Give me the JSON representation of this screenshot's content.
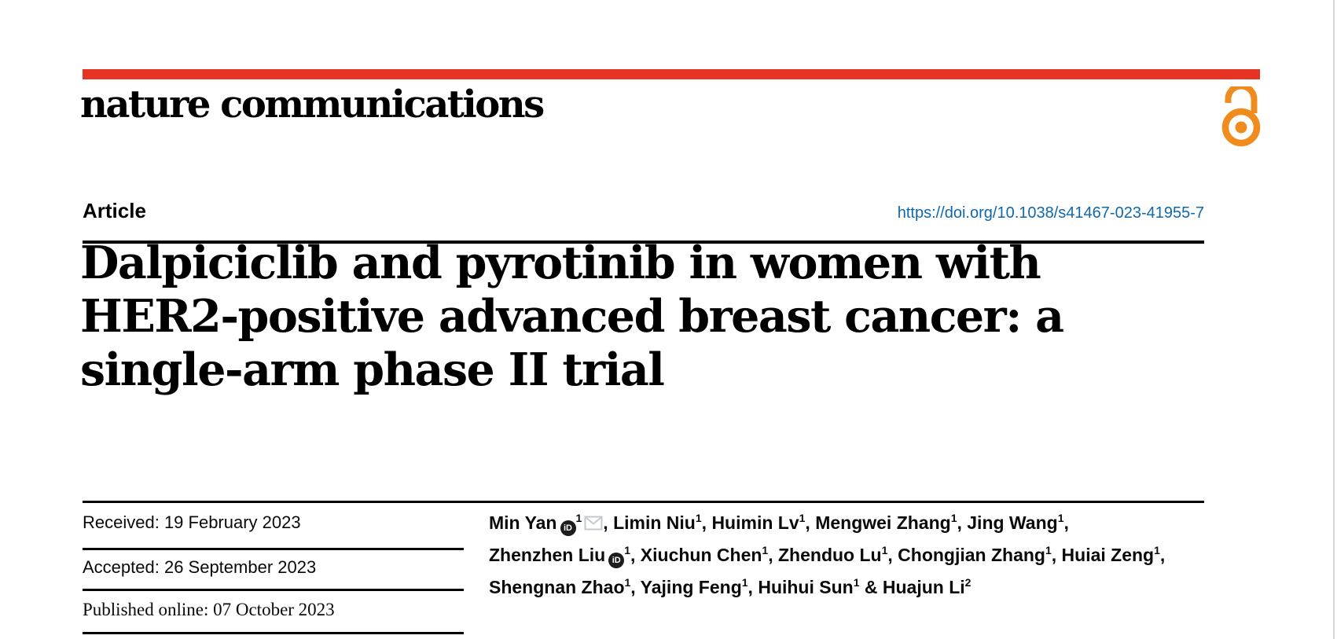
{
  "journal": {
    "name": "nature communications",
    "accent_color": "#e63323"
  },
  "open_access": {
    "icon": "open-padlock",
    "color": "#F08C1E"
  },
  "article": {
    "label": "Article",
    "doi": "https://doi.org/10.1038/s41467-023-41955-7",
    "doi_color": "#0f67ac"
  },
  "title": {
    "lines": [
      "Dalpiciclib and pyrotinib in women with",
      "HER2-positive advanced breast cancer: a",
      "single-arm phase II trial"
    ]
  },
  "dates": {
    "received": "Received: 19 February 2023",
    "accepted": "Accepted: 26 September 2023",
    "published_online": "Published online: 07 October 2023"
  },
  "icons": {
    "orcid_text": "iD",
    "email": "envelope",
    "email_color": "#c5cacf"
  },
  "authors": {
    "lines": [
      [
        {
          "name": "Min Yan",
          "orcid": true,
          "sup": "1",
          "email": true,
          "sep": ", "
        },
        {
          "name": "Limin Niu",
          "sup": "1",
          "sep": ", "
        },
        {
          "name": "Huimin Lv",
          "sup": "1",
          "sep": ", "
        },
        {
          "name": "Mengwei Zhang",
          "sup": "1",
          "sep": ", "
        },
        {
          "name": "Jing Wang",
          "sup": "1",
          "sep": ","
        }
      ],
      [
        {
          "name": "Zhenzhen Liu",
          "orcid": true,
          "sup": "1",
          "sep": ", "
        },
        {
          "name": "Xiuchun Chen",
          "sup": "1",
          "sep": ", "
        },
        {
          "name": "Zhenduo Lu",
          "sup": "1",
          "sep": ", "
        },
        {
          "name": "Chongjian Zhang",
          "sup": "1",
          "sep": ", "
        },
        {
          "name": "Huiai Zeng",
          "sup": "1",
          "sep": ","
        }
      ],
      [
        {
          "name": "Shengnan Zhao",
          "sup": "1",
          "sep": ", "
        },
        {
          "name": "Yajing Feng",
          "sup": "1",
          "sep": ", "
        },
        {
          "name": "Huihui Sun",
          "sup": "1",
          "sep": " & "
        },
        {
          "name": "Huajun Li",
          "sup": "2",
          "sep": ""
        }
      ]
    ]
  }
}
